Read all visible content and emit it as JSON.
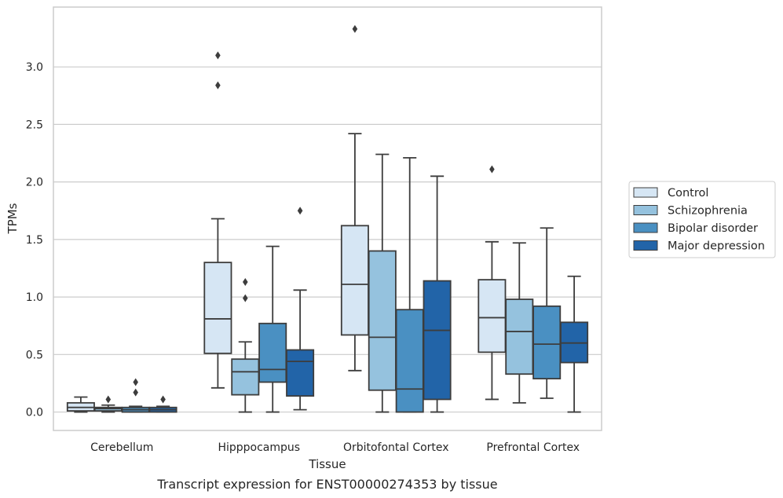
{
  "chart_data": {
    "type": "box",
    "caption": "Transcript expression for ENST00000274353 by tissue",
    "xlabel": "Tissue",
    "ylabel": "TPMs",
    "ylim": [
      -0.16,
      3.52
    ],
    "yticks": [
      0.0,
      0.5,
      1.0,
      1.5,
      2.0,
      2.5,
      3.0
    ],
    "ytick_labels": [
      "0.0",
      "0.5",
      "1.0",
      "1.5",
      "2.0",
      "2.5",
      "3.0"
    ],
    "grid": true,
    "legend_position": "right",
    "categories": [
      "Cerebellum",
      "Hipppocampus",
      "Orbitofontal Cortex",
      "Prefrontal Cortex"
    ],
    "series": [
      {
        "name": "Control",
        "color": "#d6e6f4",
        "boxes": [
          {
            "whislo": 0.0,
            "q1": 0.01,
            "med": 0.04,
            "q3": 0.08,
            "whishi": 0.13,
            "fliers": []
          },
          {
            "whislo": 0.21,
            "q1": 0.51,
            "med": 0.81,
            "q3": 1.3,
            "whishi": 1.68,
            "fliers": [
              2.84,
              3.1
            ]
          },
          {
            "whislo": 0.36,
            "q1": 0.67,
            "med": 1.11,
            "q3": 1.62,
            "whishi": 2.42,
            "fliers": [
              3.33
            ]
          },
          {
            "whislo": 0.11,
            "q1": 0.52,
            "med": 0.82,
            "q3": 1.15,
            "whishi": 1.48,
            "fliers": [
              2.11
            ]
          }
        ]
      },
      {
        "name": "Schizophrenia",
        "color": "#95c2de",
        "boxes": [
          {
            "whislo": 0.0,
            "q1": 0.01,
            "med": 0.03,
            "q3": 0.04,
            "whishi": 0.06,
            "fliers": [
              0.11
            ]
          },
          {
            "whislo": 0.0,
            "q1": 0.15,
            "med": 0.35,
            "q3": 0.46,
            "whishi": 0.61,
            "fliers": [
              0.99,
              1.13
            ]
          },
          {
            "whislo": 0.0,
            "q1": 0.19,
            "med": 0.65,
            "q3": 1.4,
            "whishi": 2.24,
            "fliers": []
          },
          {
            "whislo": 0.08,
            "q1": 0.33,
            "med": 0.7,
            "q3": 0.98,
            "whishi": 1.47,
            "fliers": []
          }
        ]
      },
      {
        "name": "Bipolar disorder",
        "color": "#4a90c2",
        "boxes": [
          {
            "whislo": 0.0,
            "q1": 0.0,
            "med": 0.02,
            "q3": 0.04,
            "whishi": 0.05,
            "fliers": [
              0.17,
              0.26
            ]
          },
          {
            "whislo": 0.0,
            "q1": 0.26,
            "med": 0.37,
            "q3": 0.77,
            "whishi": 1.44,
            "fliers": []
          },
          {
            "whislo": 0.0,
            "q1": 0.0,
            "med": 0.2,
            "q3": 0.89,
            "whishi": 2.21,
            "fliers": []
          },
          {
            "whislo": 0.12,
            "q1": 0.29,
            "med": 0.59,
            "q3": 0.92,
            "whishi": 1.6,
            "fliers": []
          }
        ]
      },
      {
        "name": "Major depression",
        "color": "#2264a8",
        "boxes": [
          {
            "whislo": 0.0,
            "q1": 0.0,
            "med": 0.02,
            "q3": 0.04,
            "whishi": 0.05,
            "fliers": [
              0.11
            ]
          },
          {
            "whislo": 0.02,
            "q1": 0.14,
            "med": 0.44,
            "q3": 0.54,
            "whishi": 1.06,
            "fliers": [
              1.75
            ]
          },
          {
            "whislo": 0.0,
            "q1": 0.11,
            "med": 0.71,
            "q3": 1.14,
            "whishi": 2.05,
            "fliers": []
          },
          {
            "whislo": 0.0,
            "q1": 0.43,
            "med": 0.6,
            "q3": 0.78,
            "whishi": 1.18,
            "fliers": []
          }
        ]
      }
    ]
  }
}
